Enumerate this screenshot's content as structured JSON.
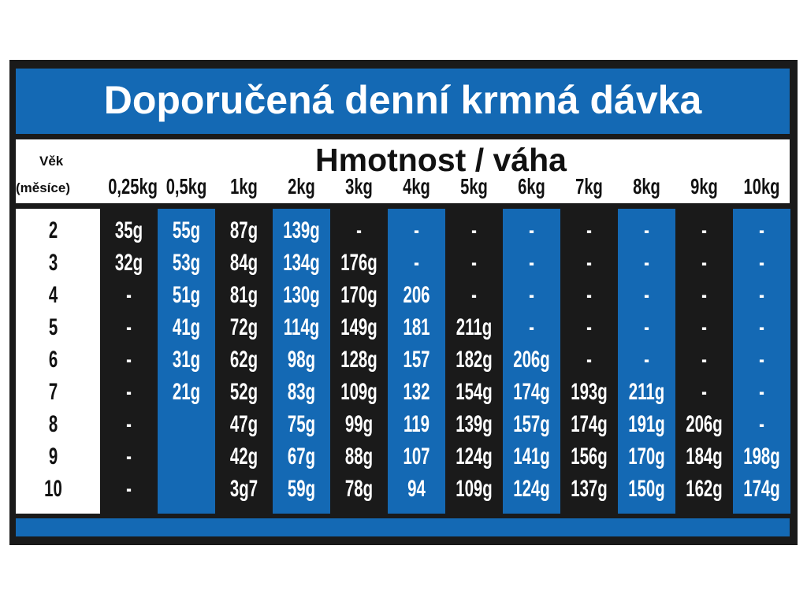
{
  "title": "Doporučená denní krmná dávka",
  "header": {
    "weight_title": "Hmotnost / váha",
    "age_label": "Věk",
    "age_unit": "(měsíce)"
  },
  "colors": {
    "blue": "#1469b4",
    "black": "#1a1a1a"
  },
  "columns": [
    "0,25kg",
    "0,5kg",
    "1kg",
    "2kg",
    "3kg",
    "4kg",
    "5kg",
    "6kg",
    "7kg",
    "8kg",
    "9kg",
    "10kg"
  ],
  "rows": [
    {
      "age": "2",
      "values": [
        "35g",
        "55g",
        "87g",
        "139g",
        "-",
        "-",
        "-",
        "-",
        "-",
        "-",
        "-",
        "-"
      ]
    },
    {
      "age": "3",
      "values": [
        "32g",
        "53g",
        "84g",
        "134g",
        "176g",
        "-",
        "-",
        "-",
        "-",
        "-",
        "-",
        "-"
      ]
    },
    {
      "age": "4",
      "values": [
        "-",
        "51g",
        "81g",
        "130g",
        "170g",
        "206",
        "-",
        "-",
        "-",
        "-",
        "-",
        "-"
      ]
    },
    {
      "age": "5",
      "values": [
        "-",
        "41g",
        "72g",
        "114g",
        "149g",
        "181",
        "211g",
        "-",
        "-",
        "-",
        "-",
        "-"
      ]
    },
    {
      "age": "6",
      "values": [
        "-",
        "31g",
        "62g",
        "98g",
        "128g",
        "157",
        "182g",
        "206g",
        "-",
        "-",
        "-",
        "-"
      ]
    },
    {
      "age": "7",
      "values": [
        "-",
        "21g",
        "52g",
        "83g",
        "109g",
        "132",
        "154g",
        "174g",
        "193g",
        "211g",
        "-",
        "-"
      ]
    },
    {
      "age": "8",
      "values": [
        "-",
        "",
        "47g",
        "75g",
        "99g",
        "119",
        "139g",
        "157g",
        "174g",
        "191g",
        "206g",
        "-"
      ]
    },
    {
      "age": "9",
      "values": [
        "-",
        "",
        "42g",
        "67g",
        "88g",
        "107",
        "124g",
        "141g",
        "156g",
        "170g",
        "184g",
        "198g"
      ]
    },
    {
      "age": "10",
      "values": [
        "-",
        "",
        "3g7",
        "59g",
        "78g",
        "94",
        "109g",
        "124g",
        "137g",
        "150g",
        "162g",
        "174g"
      ]
    }
  ]
}
